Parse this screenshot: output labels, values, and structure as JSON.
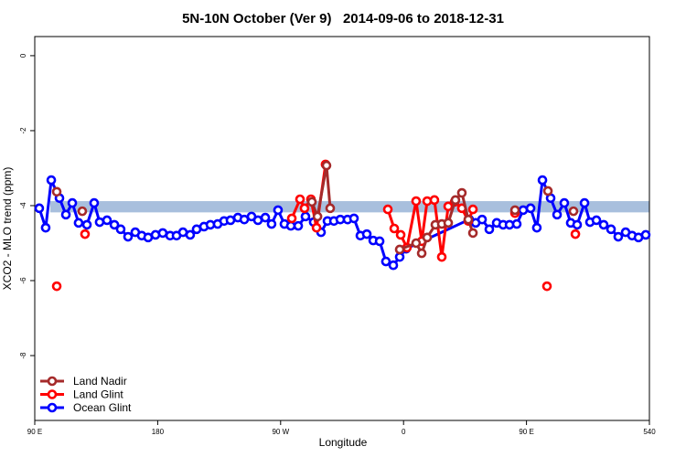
{
  "chart_data": {
    "type": "line",
    "title": "5N-10N October (Ver 9)   2014-09-06 to 2018-12-31",
    "x_label": "Longitude",
    "y_label": "XCO2 - MLO trend (ppm)",
    "xlim": [
      90,
      540
    ],
    "ylim": [
      -9.73,
      0.51
    ],
    "xticks": [
      {
        "value": 90,
        "label": "90 E"
      },
      180,
      {
        "value": 270,
        "label": "90 W"
      },
      {
        "value": 360,
        "label": "0"
      },
      {
        "value": 450,
        "label": "90 E"
      },
      540
    ],
    "yticks": [
      0,
      -2,
      -4,
      -6,
      -8
    ],
    "band": [
      -4.18,
      -3.88
    ],
    "band_color": "#a8bfdd",
    "legend": "bottom-left",
    "series": [
      {
        "name": "Land Nadir",
        "color": "#a52a2a",
        "x": [
          106.1,
          null,
          124.8,
          null,
          292.9,
          297.0,
          303.6,
          306.3,
          null,
          357.2,
          369.2,
          373.3,
          377.3,
          383.3,
          388.0,
          392.7,
          398.0,
          402.7,
          407.4,
          410.8,
          null,
          441.6,
          null,
          465.7,
          null,
          484.4
        ],
        "values": [
          -3.63,
          null,
          -4.15,
          null,
          -3.9,
          -4.29,
          -2.93,
          -4.07,
          null,
          -5.17,
          -5.0,
          -5.27,
          -4.85,
          -4.51,
          -4.49,
          -4.46,
          -3.85,
          -3.66,
          -4.37,
          -4.73,
          null,
          -4.12,
          null,
          -3.61,
          null,
          -4.15
        ]
      },
      {
        "name": "Land Glint",
        "color": "#ff0000",
        "x": [
          106.1,
          null,
          126.8,
          null,
          278.2,
          284.2,
          287.5,
          292.2,
          296.3,
          302.9,
          null,
          348.5,
          353.2,
          357.9,
          362.5,
          369.2,
          373.3,
          377.3,
          382.6,
          388.0,
          392.7,
          397.4,
          402.7,
          407.4,
          410.8,
          null,
          441.6,
          null,
          465.0,
          null,
          485.8
        ],
        "values": [
          -6.15,
          null,
          -4.76,
          null,
          -4.34,
          -3.83,
          -4.07,
          -3.83,
          -4.59,
          -2.9,
          null,
          -4.1,
          -4.61,
          -4.78,
          -5.12,
          -3.88,
          -4.95,
          -3.88,
          -3.85,
          -5.37,
          -4.02,
          -3.9,
          -4.07,
          -4.41,
          -4.1,
          null,
          -4.2,
          null,
          -6.15,
          null,
          -4.76
        ]
      },
      {
        "name": "Ocean Glint",
        "color": "#0000ff",
        "x": [
          93.3,
          98.0,
          102.1,
          108.1,
          112.8,
          117.5,
          122.1,
          128.2,
          133.5,
          137.5,
          142.9,
          148.3,
          152.9,
          158.3,
          163.6,
          168.3,
          173.0,
          178.4,
          183.7,
          189.1,
          193.8,
          198.5,
          203.8,
          208.5,
          213.9,
          218.6,
          223.9,
          228.6,
          233.3,
          238.7,
          243.4,
          248.7,
          253.4,
          258.8,
          263.4,
          268.1,
          272.8,
          277.5,
          282.9,
          288.2,
          294.2,
          299.6,
          304.3,
          309.0,
          313.7,
          319.0,
          323.7,
          328.4,
          333.1,
          337.8,
          342.5,
          347.1,
          352.5,
          357.2,
          361.9,
          408.1,
          412.8,
          417.5,
          422.8,
          428.2,
          432.9,
          437.6,
          442.9,
          447.6,
          453.0,
          457.6,
          461.7,
          467.7,
          472.4,
          477.7,
          482.4,
          487.1,
          492.5,
          496.5,
          501.2,
          506.5,
          511.9,
          517.2,
          522.6,
          527.3,
          532.0,
          537.3
        ],
        "values": [
          -4.07,
          -4.59,
          -3.32,
          -3.8,
          -4.24,
          -3.93,
          -4.46,
          -4.51,
          -3.93,
          -4.44,
          -4.39,
          -4.51,
          -4.63,
          -4.83,
          -4.71,
          -4.8,
          -4.85,
          -4.78,
          -4.73,
          -4.8,
          -4.8,
          -4.71,
          -4.78,
          -4.63,
          -4.56,
          -4.51,
          -4.49,
          -4.41,
          -4.39,
          -4.32,
          -4.37,
          -4.29,
          -4.39,
          -4.32,
          -4.49,
          -4.12,
          -4.49,
          -4.54,
          -4.54,
          -4.29,
          -4.44,
          -4.71,
          -4.41,
          -4.41,
          -4.37,
          -4.37,
          -4.34,
          -4.8,
          -4.76,
          -4.93,
          -4.95,
          -5.49,
          -5.59,
          -5.37,
          -5.15,
          -4.37,
          -4.46,
          -4.37,
          -4.63,
          -4.46,
          -4.51,
          -4.51,
          -4.49,
          -4.12,
          -4.07,
          -4.59,
          -3.32,
          -3.8,
          -4.24,
          -3.93,
          -4.46,
          -4.51,
          -3.93,
          -4.44,
          -4.39,
          -4.51,
          -4.63,
          -4.83,
          -4.71,
          -4.8,
          -4.85,
          -4.78
        ]
      }
    ]
  }
}
